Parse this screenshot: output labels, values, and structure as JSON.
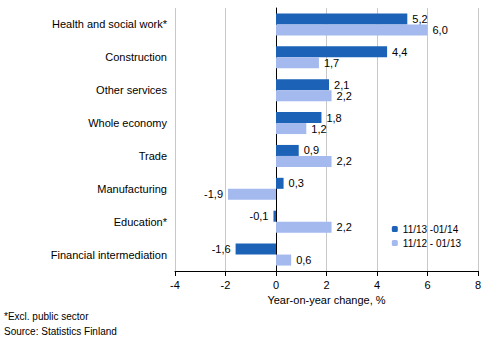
{
  "chart_data": {
    "type": "bar",
    "orientation": "horizontal",
    "categories": [
      "Health and social work*",
      "Construction",
      "Other services",
      "Whole economy",
      "Trade",
      "Manufacturing",
      "Education*",
      "Financial intermediation"
    ],
    "series": [
      {
        "name": "11/13 -01/14",
        "color": "#1c63b7",
        "values": [
          5.2,
          4.4,
          2.1,
          1.8,
          0.9,
          0.3,
          -0.1,
          -1.6
        ],
        "value_labels": [
          "5,2",
          "4,4",
          "2,1",
          "1,8",
          "0,9",
          "0,3",
          "-0,1",
          "-1,6"
        ]
      },
      {
        "name": "11/12 - 01/13",
        "color": "#a4b9ee",
        "values": [
          6.0,
          1.7,
          2.2,
          1.2,
          2.2,
          -1.9,
          2.2,
          0.6
        ],
        "value_labels": [
          "6,0",
          "1,7",
          "2,2",
          "1,2",
          "2,2",
          "-1,9",
          "2,2",
          "0,6"
        ]
      }
    ],
    "x_label": "Year-on-year change, %",
    "xlim": [
      -4,
      8
    ],
    "xticks": [
      -4,
      -2,
      0,
      2,
      4,
      6,
      8
    ],
    "grid": true,
    "legend": "lower right",
    "data_labels": true,
    "annotations": [
      "*Excl. public sector",
      "Source: Statistics Finland"
    ]
  }
}
